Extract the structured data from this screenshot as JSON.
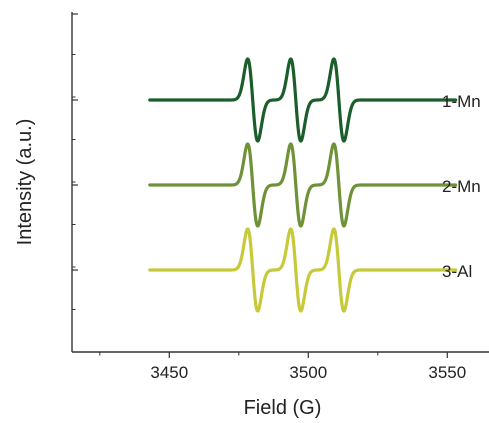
{
  "chart_data": {
    "type": "line",
    "xlabel": "Field (G)",
    "ylabel": "Intensity (a.u.)",
    "xlim": [
      3415,
      3565
    ],
    "x_ticks": [
      3450,
      3500,
      3550
    ],
    "x_tick_labels": [
      "3450",
      "3500",
      "3550"
    ],
    "y_ticks_labeled": false,
    "grid": false,
    "legend": "inline labels at right end of each trace",
    "signal_model": {
      "x_start": 3443,
      "x_end": 3553,
      "line_centers": [
        3480,
        3495.5,
        3511
      ],
      "line_width": 1.8,
      "offset_spacing": 1
    },
    "series": [
      {
        "name": "1-Mn",
        "offset": 2,
        "amplitude": 1.0,
        "color": "#1b5e2b"
      },
      {
        "name": "2-Mn",
        "offset": 1,
        "amplitude": 1.0,
        "color": "#6f9238"
      },
      {
        "name": "3-Al",
        "offset": 0,
        "amplitude": 1.0,
        "color": "#c6c93a"
      }
    ]
  }
}
